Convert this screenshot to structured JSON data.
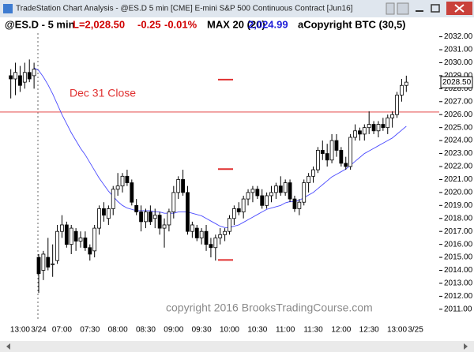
{
  "window": {
    "title": "TradeStation Chart Analysis - @ES.D 5 min [CME] E-mini S&P 500 Continuous Contract [Jun16]"
  },
  "header": {
    "symbol": "@ES.D - 5 min",
    "last": "L=2,028.50",
    "change": "-0.25",
    "change_pct": "-0.01%",
    "study": "MAX 20 (20)",
    "study_value": "2,024.99",
    "study2": "aCopyright BTC (30,5)"
  },
  "chart_data": {
    "type": "candlestick",
    "categories": [
      null,
      null,
      "13:00",
      null,
      null,
      null,
      "3/24",
      null,
      null,
      null,
      null,
      "07:00",
      null,
      null,
      null,
      null,
      null,
      "07:30",
      null,
      null,
      null,
      null,
      null,
      "08:00",
      null,
      null,
      null,
      null,
      null,
      "08:30",
      null,
      null,
      null,
      null,
      null,
      "09:00",
      null,
      null,
      null,
      null,
      null,
      "09:30",
      null,
      null,
      null,
      null,
      null,
      "10:00",
      null,
      null,
      null,
      null,
      null,
      "10:30",
      null,
      null,
      null,
      null,
      null,
      "11:00",
      null,
      null,
      null,
      null,
      null,
      "11:30",
      null,
      null,
      null,
      null,
      null,
      "12:00",
      null,
      null,
      null,
      null,
      null,
      "12:30",
      null,
      null,
      null,
      null,
      null,
      "13:00",
      null,
      null,
      null,
      "3/25"
    ],
    "open": [
      2029,
      2028.75,
      2029,
      2028.5,
      2029.25,
      2029,
      2015,
      2014,
      2015,
      2014.5,
      2014.75,
      2017,
      2017.5,
      2016,
      2017,
      2016.25,
      2016.5,
      2015.75,
      2015.5,
      2017.25,
      2018.75,
      2018,
      2018.75,
      2020.25,
      2020.5,
      2021.25,
      2020.75,
      2019,
      2018.5,
      2017.75,
      2018.5,
      2018,
      2018.25,
      2017.25,
      2017.5,
      2018.5,
      2020,
      2021,
      2020,
      2017,
      2017.25,
      2016.5,
      2017,
      2016,
      2015.75,
      2016.5,
      2016.75,
      2017,
      2018,
      2018.75,
      2018.5,
      2019.5,
      2020,
      2020.25,
      2019.75,
      2019,
      2019.75,
      2020,
      2020.5,
      2020,
      2020.75,
      2019.5,
      2018.75,
      2019.25,
      2020.75,
      2021.25,
      2021.75,
      2023.25,
      2023,
      2022.5,
      2024,
      2023.25,
      2022.25,
      2022,
      2024.25,
      2024.75,
      2024.5,
      2025,
      2025.25,
      2024.75,
      2025.25,
      2025,
      2025.75,
      2026,
      2027.5,
      2028.25,
      null,
      null
    ],
    "high": [
      2029.5,
      2030,
      2029.75,
      2030,
      2030.25,
      2030,
      2015.25,
      2015.5,
      2016.5,
      2016,
      2017.5,
      2018.25,
      2017.75,
      2017.5,
      2017.25,
      2017,
      2017,
      2016,
      2017.5,
      2019,
      2019.25,
      2019,
      2020.5,
      2021.5,
      2021.5,
      2021.75,
      2021,
      2019.5,
      2019,
      2018.75,
      2019,
      2018.75,
      2018.5,
      2018,
      2018.75,
      2020.5,
      2021.25,
      2021.75,
      2020.5,
      2017.75,
      2017.5,
      2017.25,
      2017.5,
      2016.5,
      2016.75,
      2017.25,
      2017.25,
      2018.25,
      2019,
      2019.25,
      2019.75,
      2020.25,
      2020.5,
      2020.5,
      2020.25,
      2020,
      2020.5,
      2020.75,
      2021.25,
      2021,
      2021,
      2019.75,
      2019.5,
      2021,
      2021.5,
      2022,
      2023.5,
      2024,
      2023.75,
      2024.5,
      2024.5,
      2023.5,
      2022.75,
      2024.5,
      2025.25,
      2025,
      2025.25,
      2026.25,
      2025.5,
      2025.5,
      2025.75,
      2026,
      2026.25,
      2027.75,
      2028.75,
      2029,
      null,
      null
    ],
    "low": [
      2027.25,
      2027.5,
      2027.75,
      2028,
      2028.5,
      2028,
      2012.25,
      2013.25,
      2014,
      2013.5,
      2014.5,
      2016.5,
      2015.75,
      2015.25,
      2015.5,
      2015.75,
      2015.5,
      2014.75,
      2015,
      2016.75,
      2017.75,
      2017.5,
      2018.25,
      2019.75,
      2020,
      2020.5,
      2019,
      2018.25,
      2017,
      2017.25,
      2017.5,
      2017.25,
      2016.75,
      2015.75,
      2017,
      2018,
      2019.5,
      2019.75,
      2016.75,
      2016.5,
      2016.25,
      2016,
      2015.5,
      2015,
      2014.75,
      2016,
      2016.25,
      2016.75,
      2017.5,
      2018.25,
      2018,
      2019,
      2019.25,
      2019.5,
      2018.75,
      2018.75,
      2019.25,
      2019.5,
      2019.75,
      2019.75,
      2019.25,
      2018.5,
      2018.25,
      2019,
      2020,
      2020.75,
      2021.5,
      2022.5,
      2022,
      2022.25,
      2022.75,
      2022,
      2021.75,
      2021.75,
      2024,
      2024,
      2024,
      2024.5,
      2024.5,
      2024.25,
      2024.75,
      2024.5,
      2025,
      2025.75,
      2027,
      2027.75,
      null,
      null
    ],
    "close": [
      2028.75,
      2029.25,
      2028.25,
      2029.25,
      2028.75,
      2029.5,
      2013.75,
      2015.25,
      2014.25,
      2014.5,
      2017,
      2017.5,
      2016,
      2017.25,
      2016.25,
      2016.5,
      2015.75,
      2015.25,
      2017.25,
      2018.75,
      2018.25,
      2018.75,
      2020.25,
      2020.5,
      2021.25,
      2020.75,
      2019.25,
      2018.5,
      2017.75,
      2018.5,
      2017.75,
      2018.25,
      2017.25,
      2017.5,
      2018.5,
      2020,
      2021,
      2020,
      2017,
      2017.5,
      2016.5,
      2017,
      2016,
      2015.75,
      2016.5,
      2016.75,
      2017,
      2018,
      2018.75,
      2018.5,
      2019.5,
      2020,
      2020.25,
      2019.75,
      2019,
      2019.75,
      2020,
      2020.5,
      2020,
      2020.75,
      2019.5,
      2018.75,
      2019.25,
      2020.75,
      2021.25,
      2021.75,
      2023.25,
      2023,
      2022.5,
      2024,
      2023.25,
      2022.25,
      2022,
      2024.25,
      2024.75,
      2024.5,
      2025,
      2025.25,
      2024.75,
      2025.25,
      2025,
      2025.75,
      2026,
      2027.5,
      2028.25,
      2028.5,
      null,
      null
    ],
    "ma": {
      "color": "#4a4aff",
      "values": [
        null,
        null,
        null,
        null,
        null,
        2029.6,
        2029.4,
        2028.9,
        2028.3,
        2027.6,
        2026.8,
        2026.0,
        2025.3,
        2024.6,
        2024.0,
        2023.4,
        2022.9,
        2022.3,
        2021.7,
        2021.1,
        2020.6,
        2020.1,
        2019.7,
        2019.3,
        2019.0,
        2018.8,
        2018.7,
        2018.6,
        2018.6,
        2018.6,
        2018.6,
        2018.5,
        2018.5,
        2018.4,
        2018.4,
        2018.4,
        2018.5,
        2018.5,
        2018.5,
        2018.4,
        2018.3,
        2018.2,
        2018.0,
        2017.8,
        2017.6,
        2017.4,
        2017.3,
        2017.3,
        2017.4,
        2017.5,
        2017.7,
        2017.9,
        2018.1,
        2018.3,
        2018.5,
        2018.7,
        2018.8,
        2018.9,
        2019.0,
        2019.2,
        2019.3,
        2019.3,
        2019.4,
        2019.6,
        2019.8,
        2020.0,
        2020.3,
        2020.6,
        2020.9,
        2021.2,
        2021.4,
        2021.6,
        2021.8,
        2022.1,
        2022.4,
        2022.7,
        2023.0,
        2023.2,
        2023.4,
        2023.6,
        2023.8,
        2024.0,
        2024.2,
        2024.5,
        2024.8,
        2025.1,
        null,
        null
      ]
    },
    "up_color": "#ffffff",
    "down_color": "#000000",
    "ylim": [
      2010.2,
      2032.4
    ],
    "yticks": [
      {
        "value": 2011,
        "label": "2011.00"
      },
      {
        "value": 2012,
        "label": "2012.00"
      },
      {
        "value": 2013,
        "label": "2013.00"
      },
      {
        "value": 2014,
        "label": "2014.00"
      },
      {
        "value": 2015,
        "label": "2015.00"
      },
      {
        "value": 2016,
        "label": "2016.00"
      },
      {
        "value": 2017,
        "label": "2017.00"
      },
      {
        "value": 2018,
        "label": "2018.00"
      },
      {
        "value": 2019,
        "label": "2019.00"
      },
      {
        "value": 2020,
        "label": "2020.00"
      },
      {
        "value": 2021,
        "label": "2021.00"
      },
      {
        "value": 2022,
        "label": "2022.00"
      },
      {
        "value": 2023,
        "label": "2023.00"
      },
      {
        "value": 2024,
        "label": "2024.00"
      },
      {
        "value": 2025,
        "label": "2025.00"
      },
      {
        "value": 2026,
        "label": "2026.00"
      },
      {
        "value": 2027,
        "label": "2027.00"
      },
      {
        "value": 2028,
        "label": "2028.00"
      },
      {
        "value": 2029,
        "label": "2029.00"
      },
      {
        "value": 2030,
        "label": "2030.00"
      },
      {
        "value": 2031,
        "label": "2031.00"
      },
      {
        "value": 2032,
        "label": "2032.00"
      }
    ],
    "reference_line": {
      "label": "Dec 31 Close",
      "value": 2026.2,
      "color": "#e03030"
    },
    "levels": [
      2028.7,
      2021.8,
      2014.8
    ],
    "last_price": {
      "value": 2028.5,
      "label": "2028.50"
    },
    "watermark": "copyright 2016 BrooksTradingCourse.com"
  }
}
